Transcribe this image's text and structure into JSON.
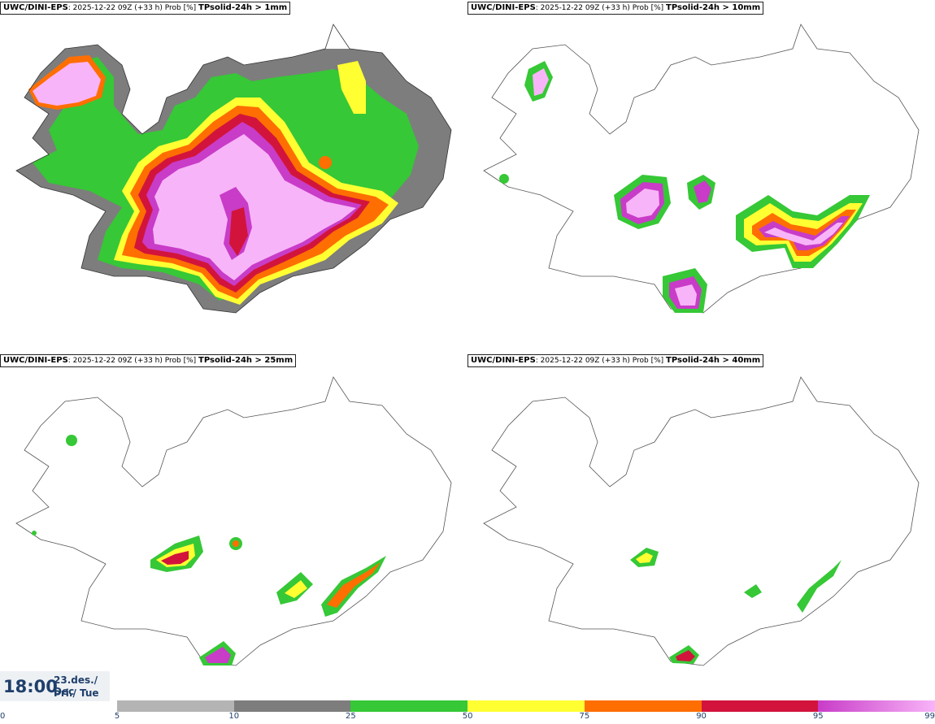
{
  "panels": [
    {
      "model": "UWC/DINI-EPS",
      "run": ": 2025-12-22 09Z (+33 h) Prob [%] ",
      "threshold": "TPsolid-24h > 1mm"
    },
    {
      "model": "UWC/DINI-EPS",
      "run": ": 2025-12-22 09Z (+33 h) Prob [%] ",
      "threshold": "TPsolid-24h > 10mm"
    },
    {
      "model": "UWC/DINI-EPS",
      "run": ": 2025-12-22 09Z (+33 h) Prob [%] ",
      "threshold": "TPsolid-24h > 25mm"
    },
    {
      "model": "UWC/DINI-EPS",
      "run": ": 2025-12-22 09Z (+33 h) Prob [%] ",
      "threshold": "TPsolid-24h > 40mm"
    }
  ],
  "valid_time": {
    "time": "18:00",
    "date_line1": "23.des./ Dec",
    "date_line2": "Þri./ Tue"
  },
  "colorbar": {
    "ticks": [
      "0",
      "5",
      "10",
      "25",
      "50",
      "75",
      "90",
      "95",
      "99"
    ],
    "colors": [
      "#ffffff",
      "#b4b4b4",
      "#7d7d7d",
      "#36c836",
      "#ffff32",
      "#ff6e00",
      "#d2143c",
      "#c83cc8",
      "#f8b4f8"
    ]
  }
}
